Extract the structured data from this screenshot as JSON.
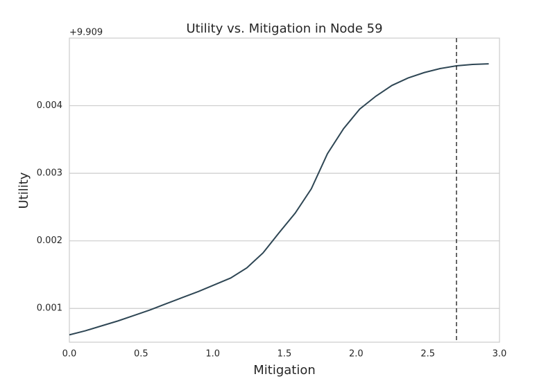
{
  "chart_data": {
    "type": "line",
    "title": "Utility vs. Mitigation in Node 59",
    "x_label": "Mitigation",
    "y_label": "Utility",
    "y_offset_label": "+9.909",
    "x": [
      0,
      0.1125,
      0.225,
      0.3375,
      0.45,
      0.5625,
      0.675,
      0.7875,
      0.9,
      1.0125,
      1.125,
      1.2375,
      1.35,
      1.4625,
      1.575,
      1.6875,
      1.8,
      1.9125,
      2.025,
      2.1375,
      2.25,
      2.3625,
      2.475,
      2.5875,
      2.7,
      2.8125,
      2.925
    ],
    "series": [
      {
        "color": "#2e4654",
        "values": [
          0.000609,
          0.00067,
          0.000742,
          0.000814,
          0.000895,
          0.000977,
          0.00107,
          0.00116,
          0.00125,
          0.00135,
          0.00145,
          0.0016,
          0.00182,
          0.00212,
          0.00241,
          0.00277,
          0.00329,
          0.00366,
          0.00395,
          0.00414,
          0.0043,
          0.00441,
          0.00449,
          0.00455,
          0.00459,
          0.00461,
          0.00462
        ]
      }
    ],
    "vline_x": 2.7,
    "xlim": [
      0,
      3
    ],
    "xticks": [
      {
        "value": 0,
        "label": "0.0"
      },
      0.5,
      {
        "value": 1,
        "label": "1.0"
      },
      1.5,
      {
        "value": 2,
        "label": "2.0"
      },
      2.5,
      {
        "value": 3,
        "label": "3.0"
      }
    ],
    "ylim": [
      0.0005,
      0.005
    ],
    "yticks": [
      0.001,
      0.002,
      0.003,
      0.004
    ],
    "grid": true
  }
}
